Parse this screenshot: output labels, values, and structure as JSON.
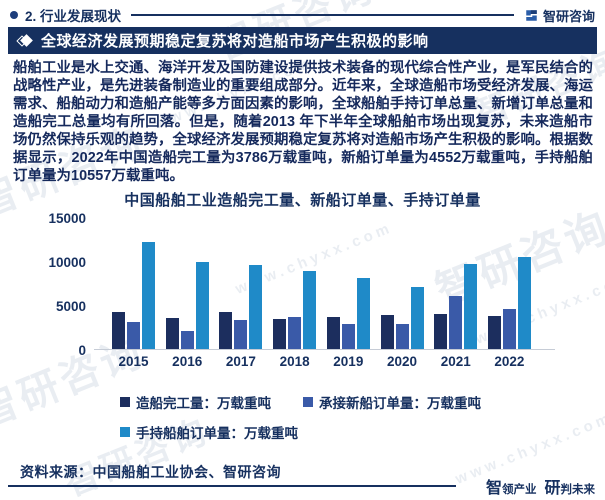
{
  "page": {
    "section_label": "2. 行业发展现状",
    "brand_name": "智研咨询",
    "banner_title": "全球经济发展预期稳定复苏将对造船市场产生积极的影响",
    "paragraph": "船舶工业是水上交通、海洋开发及国防建设提供技术装备的现代综合性产业，是军民结合的战略性产业，是先进装备制造业的重要组成部分。近年来，全球造船市场受经济发展、海运需求、船舶动力和造船产能等多方面因素的影响，全球船舶手持订单总量、新增订单总量和造船完工总量均有所回落。但是，随着2013 年下半年全球船舶市场出现复苏，未来造船市场仍然保持乐观的趋势，全球经济发展预期稳定复苏将对造船市场产生积极的影响。根据数据显示，2022年中国造船完工量为3786万载重吨，新船订单量为4552万载重吨，手持船舶订单量为10557万载重吨。",
    "source_note": "资料来源：中国船舶工业协会、智研咨询",
    "slogan": {
      "big1": "智",
      "small1": "领产业",
      "big2": "研",
      "small2": "判未来"
    },
    "watermark_brand": "智研咨询",
    "watermark_url": "www.chyxx.com"
  },
  "chart_data": {
    "type": "bar",
    "title": "中国船舶工业造船完工量、新船订单量、手持订单量",
    "categories": [
      "2015",
      "2016",
      "2017",
      "2018",
      "2019",
      "2020",
      "2021",
      "2022"
    ],
    "series": [
      {
        "name": "造船完工量：万载重吨",
        "color": "#1c2e5e",
        "values": [
          4184,
          3532,
          4268,
          3458,
          3672,
          3853,
          3970,
          3786
        ]
      },
      {
        "name": "承接新船订单量：万载重吨",
        "color": "#3a5aa8",
        "values": [
          3126,
          2107,
          3373,
          3667,
          2907,
          2893,
          6100,
          4552
        ]
      },
      {
        "name": "手持船舶订单量：万载重吨",
        "color": "#1f8ac8",
        "values": [
          12304,
          9961,
          9600,
          8931,
          8166,
          7111,
          9700,
          10557
        ]
      }
    ],
    "xlabel": "",
    "ylabel": "",
    "ylim": [
      0,
      15000
    ],
    "yticks": [
      0,
      5000,
      10000,
      15000
    ],
    "grid": false,
    "legend_position": "bottom"
  },
  "colors": {
    "navy": "#16305f",
    "banner_bg": "#16305f",
    "bar_dark": "#1c2e5e",
    "bar_medium": "#3a5aa8",
    "bar_light": "#1f8ac8",
    "axis_line": "#c6ccd6"
  }
}
